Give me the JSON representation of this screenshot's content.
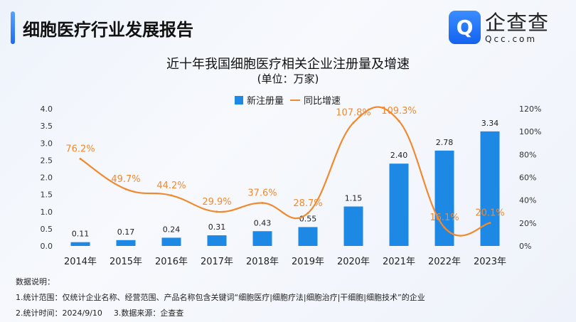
{
  "header": {
    "title": "细胞医疗行业发展报告",
    "logo_cn": "企查查",
    "logo_en": "Qcc.com"
  },
  "chart_data": {
    "type": "bar+line",
    "title": "近十年我国细胞医疗相关企业注册量及增速",
    "subtitle": "(单位：万家)",
    "categories": [
      "2014年",
      "2015年",
      "2016年",
      "2017年",
      "2018年",
      "2019年",
      "2020年",
      "2021年",
      "2022年",
      "2023年"
    ],
    "series": [
      {
        "name": "新注册量",
        "type": "bar",
        "axis": "left",
        "color": "#1e88e5",
        "values": [
          0.11,
          0.17,
          0.24,
          0.31,
          0.43,
          0.55,
          1.15,
          2.4,
          2.78,
          3.34
        ],
        "labels": [
          "0.11",
          "0.17",
          "0.24",
          "0.31",
          "0.43",
          "0.55",
          "1.15",
          "2.40",
          "2.78",
          "3.34"
        ]
      },
      {
        "name": "同比增速",
        "type": "line",
        "axis": "right",
        "color": "#f08a30",
        "values": [
          76.2,
          49.7,
          44.2,
          29.9,
          37.6,
          28.7,
          107.8,
          109.3,
          16.1,
          20.1
        ],
        "labels": [
          "76.2%",
          "49.7%",
          "44.2%",
          "29.9%",
          "37.6%",
          "28.7%",
          "107.8%",
          "109.3%",
          "16.1%",
          "20.1%"
        ]
      }
    ],
    "left_axis": {
      "range": [
        0,
        4.0
      ],
      "ticks": [
        "0.0",
        "0.5",
        "1.0",
        "1.5",
        "2.0",
        "2.5",
        "3.0",
        "3.5",
        "4.0"
      ]
    },
    "right_axis": {
      "range": [
        0,
        120
      ],
      "ticks": [
        "0%",
        "20%",
        "40%",
        "60%",
        "80%",
        "100%",
        "120%"
      ]
    },
    "legend": "top-center",
    "grid": false
  },
  "notes": {
    "heading": "数据说明：",
    "line1": "1.统计范围：仅统计企业名称、经营范围、产品名称包含关键词“细胞医疗|细胞疗法|细胞治疗|干细胞|细胞技术”的企业",
    "line2a": "2.统计时间：2024/9/10",
    "line2b": "3.数据来源：企查查"
  }
}
